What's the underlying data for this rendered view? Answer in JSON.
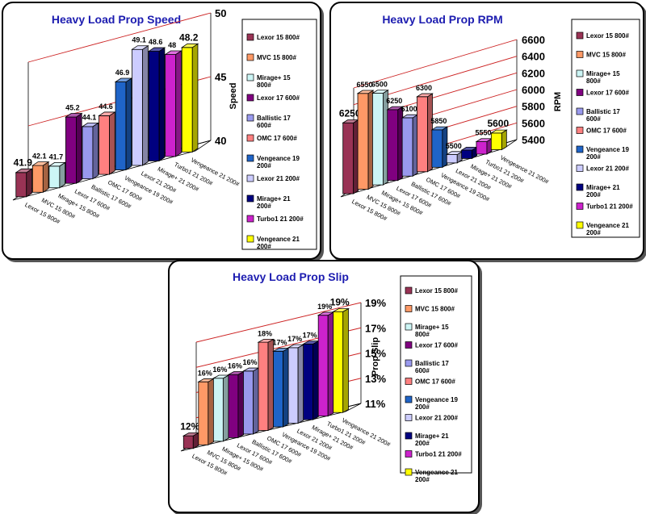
{
  "categories": [
    "Lexor 15 800#",
    "MVC 15 800#",
    "Mirage+ 15 800#",
    "Lexor 17 600#",
    "Ballistic 17 600#",
    "OMC 17 600#",
    "Vengeance 19 200#",
    "Lexor 21 200#",
    "Mirage+ 21 200#",
    "Turbo1 21 200#",
    "Vengeance 21 200#"
  ],
  "axis_categories": [
    "Lexor 15 800#",
    "MVC 15 800#",
    "Mirage+ 15 800#",
    "Lexor 17 600#",
    "Ballistic 17 600#",
    "OMC 17 600#",
    "Vengeance 19 200#",
    "Lexor 21 200#",
    "Mirage+ 21 200#",
    "Turbo1 21 200#",
    "Vengeance 21 200#"
  ],
  "legend_entries": [
    "Lexor 15 800#",
    "MVC 15 800#",
    "Mirage+ 15 800#",
    "Lexor 17 600#",
    "Ballistic 17 600#",
    "OMC 17 600#",
    "Vengeance 19 200#",
    "Lexor 21 200#",
    "Mirage+ 21 200#",
    "Turbo1 21 200#",
    "Vengeance 21 200#"
  ],
  "series_colors": [
    "#993355",
    "#ff9966",
    "#ccf5f5",
    "#800080",
    "#9999ee",
    "#ff8080",
    "#1f64c8",
    "#ccccff",
    "#000080",
    "#cc22cc",
    "#ffff00"
  ],
  "chart_data": [
    {
      "type": "bar",
      "title": "Heavy Load Prop Speed",
      "ylabel": "Speed",
      "xlabel": "",
      "ylim": [
        40,
        50
      ],
      "yticks": [
        "40",
        "45",
        "50"
      ],
      "values": [
        41.9,
        42.1,
        41.7,
        45.2,
        44.1,
        44.6,
        46.9,
        49.1,
        48.6,
        48,
        48.2
      ],
      "data_labels": [
        "41.9",
        "42.1",
        "41.7",
        "45.2",
        "44.1",
        "44.6",
        "46.9",
        "49.1",
        "48.6",
        "48",
        "48.2"
      ],
      "grid": true,
      "legend": "right"
    },
    {
      "type": "bar",
      "title": "Heavy Load Prop RPM",
      "ylabel": "RPM",
      "xlabel": "",
      "ylim": [
        5400,
        6600
      ],
      "yticks": [
        "5400",
        "5600",
        "5800",
        "6000",
        "6200",
        "6400",
        "6600"
      ],
      "values": [
        6250,
        6550,
        6500,
        6250,
        6100,
        6300,
        5850,
        5500,
        5500,
        5550,
        5600
      ],
      "data_labels": [
        "6250",
        "6550",
        "6500",
        "6250",
        "6100",
        "6300",
        "5850",
        "5500",
        "",
        "5550",
        "5600"
      ],
      "grid": true,
      "legend": "right"
    },
    {
      "type": "bar",
      "title": "Heavy Load Prop Slip",
      "ylabel": "Prop Slip",
      "xlabel": "",
      "ylim": [
        11,
        19
      ],
      "yticks": [
        "11%",
        "13%",
        "15%",
        "17%",
        "19%"
      ],
      "values": [
        12,
        16,
        16,
        16,
        16,
        18,
        17,
        17,
        17,
        19,
        19
      ],
      "data_labels": [
        "12%",
        "16%",
        "16%",
        "16%",
        "16%",
        "18%",
        "17%",
        "17%",
        "17%",
        "19%",
        "19%"
      ],
      "grid": true,
      "legend": "right"
    }
  ]
}
